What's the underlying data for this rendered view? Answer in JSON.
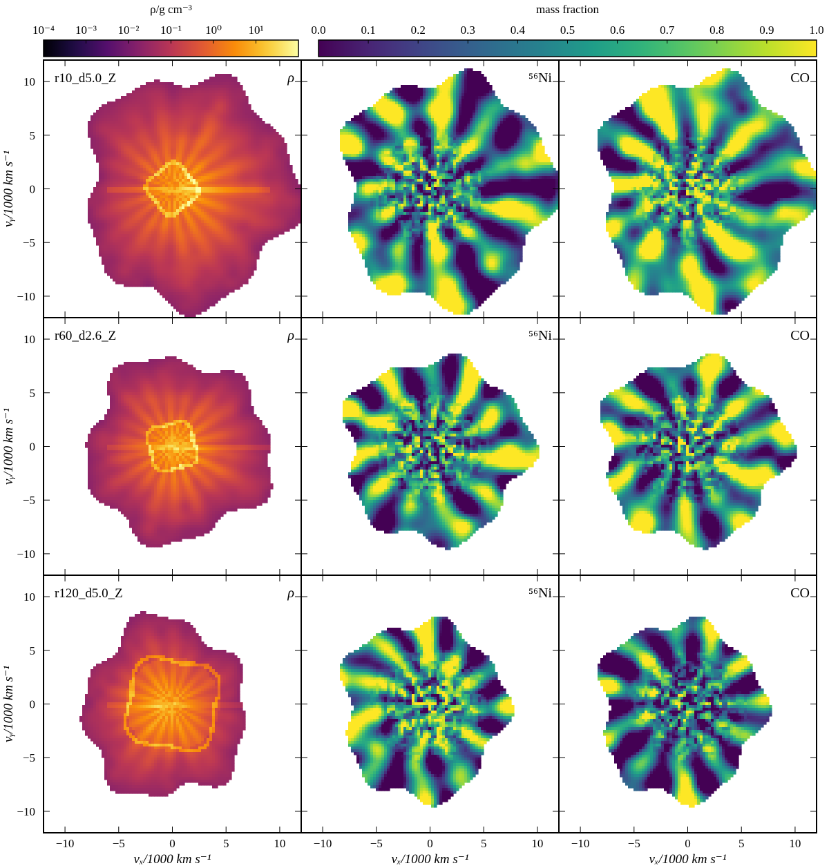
{
  "chart_data": {
    "type": "heatmap",
    "layout": {
      "rows": 3,
      "cols": 3
    },
    "colorbars": [
      {
        "label": "ρ/g cm⁻³",
        "cmap": "inferno",
        "scale": "log",
        "range": [
          0.0001,
          100
        ],
        "ticks": [
          {
            "value": 0.0001,
            "label": "10⁻⁴"
          },
          {
            "value": 0.001,
            "label": "10⁻³"
          },
          {
            "value": 0.01,
            "label": "10⁻²"
          },
          {
            "value": 0.1,
            "label": "10⁻¹"
          },
          {
            "value": 1,
            "label": "10⁰"
          },
          {
            "value": 10,
            "label": "10¹"
          }
        ]
      },
      {
        "label": "mass fraction",
        "cmap": "viridis",
        "scale": "linear",
        "range": [
          0,
          1
        ],
        "ticks": [
          {
            "value": 0.0,
            "label": "0.0"
          },
          {
            "value": 0.1,
            "label": "0.1"
          },
          {
            "value": 0.2,
            "label": "0.2"
          },
          {
            "value": 0.3,
            "label": "0.3"
          },
          {
            "value": 0.4,
            "label": "0.4"
          },
          {
            "value": 0.5,
            "label": "0.5"
          },
          {
            "value": 0.6,
            "label": "0.6"
          },
          {
            "value": 0.7,
            "label": "0.7"
          },
          {
            "value": 0.8,
            "label": "0.8"
          },
          {
            "value": 0.9,
            "label": "0.9"
          },
          {
            "value": 1.0,
            "label": "1.0"
          }
        ]
      }
    ],
    "xlabel": "vₓ/1000 km s⁻¹",
    "ylabel": "vᵧ/1000 km s⁻¹",
    "xlim": [
      -12,
      12
    ],
    "ylim": [
      -12,
      12
    ],
    "xticks": [
      -10,
      -5,
      0,
      5,
      10
    ],
    "yticks": [
      -10,
      -5,
      0,
      5,
      10
    ],
    "tick_labels": [
      "−10",
      "−5",
      "0",
      "5",
      "10"
    ],
    "models": [
      {
        "name": "r10_d5.0_Z",
        "ejecta_extent": {
          "left": -8.2,
          "right": 11.2,
          "top": 10.6,
          "bottom": -10.8
        },
        "outline_radius_scale": 1.0,
        "inner_shell_radius": 2.2,
        "ni_high_fraction": 0.48,
        "co_high_fraction": 0.58
      },
      {
        "name": "r60_d2.6_Z",
        "ejecta_extent": {
          "left": -8.0,
          "right": 9.0,
          "top": 8.2,
          "bottom": -8.8
        },
        "outline_radius_scale": 0.8,
        "inner_shell_radius": 2.3,
        "ni_high_fraction": 0.45,
        "co_high_fraction": 0.48
      },
      {
        "name": "r120_d5.0_Z",
        "ejecta_extent": {
          "left": -8.2,
          "right": 6.8,
          "top": 7.8,
          "bottom": -8.8
        },
        "outline_radius_scale": 0.75,
        "inner_shell_radius": 4.4,
        "ni_high_fraction": 0.55,
        "co_high_fraction": 0.38
      }
    ],
    "panel_quantities": [
      {
        "label": "ρ",
        "colorbar": 0
      },
      {
        "label": "⁵⁶Ni",
        "colorbar": 1
      },
      {
        "label": "CO",
        "colorbar": 1
      }
    ],
    "grid": false
  }
}
